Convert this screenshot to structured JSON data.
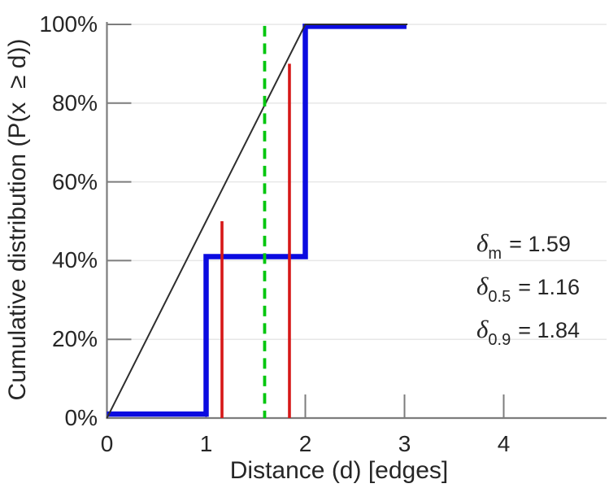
{
  "chart_data": {
    "type": "line",
    "title": "",
    "xlabel": "Distance (d) [edges]",
    "ylabel": "Cumulative distribution (P(x  ≥ d))",
    "xlim": [
      0,
      5.03
    ],
    "ylim": [
      0,
      100
    ],
    "grid": "horizontal-only",
    "legend": "none",
    "xticks": [
      {
        "value": 0,
        "label": "0"
      },
      {
        "value": 1,
        "label": "1"
      },
      {
        "value": 2,
        "label": "2"
      },
      {
        "value": 3,
        "label": "3"
      },
      {
        "value": 4,
        "label": "4"
      }
    ],
    "yticks": [
      {
        "value": 0,
        "label": "0%"
      },
      {
        "value": 20,
        "label": "20%"
      },
      {
        "value": 40,
        "label": "40%"
      },
      {
        "value": 60,
        "label": "60%"
      },
      {
        "value": 80,
        "label": "80%"
      },
      {
        "value": 100,
        "label": "100%"
      }
    ],
    "series": [
      {
        "name": "empirical-cdf-step",
        "color": "#0b0be0",
        "width": 6.5,
        "dash": "",
        "points": [
          [
            0,
            1
          ],
          [
            1,
            1
          ],
          [
            1,
            41
          ],
          [
            2,
            41
          ],
          [
            2,
            99.5
          ],
          [
            3.02,
            99.5
          ]
        ]
      },
      {
        "name": "linear-reference-line",
        "color": "#2e2e2e",
        "width": 2,
        "dash": "",
        "points": [
          [
            0,
            0
          ],
          [
            2,
            100
          ],
          [
            3.03,
            100
          ]
        ]
      }
    ],
    "vertical_markers": [
      {
        "name": "delta-0.5-marker",
        "x": 1.16,
        "y_top": 50,
        "color": "#d61818",
        "width": 3.6,
        "dash": ""
      },
      {
        "name": "delta-0.9-marker",
        "x": 1.84,
        "y_top": 90,
        "color": "#d61818",
        "width": 3.6,
        "dash": ""
      },
      {
        "name": "delta-mean-marker",
        "x": 1.59,
        "y_top": 99.6,
        "color": "#00c60e",
        "width": 3.8,
        "dash": "13 8.5"
      }
    ],
    "annotations": [
      {
        "symbol": "δ",
        "sub": "m",
        "text": "= 1.59"
      },
      {
        "symbol": "δ",
        "sub": "0.5",
        "text": "= 1.16"
      },
      {
        "symbol": "δ",
        "sub": "0.9",
        "text": "= 1.84"
      }
    ],
    "colors": {
      "cdf_line": "#0b0be0",
      "reference_line": "#2e2e2e",
      "quantile_markers": "#d61818",
      "mean_marker": "#00c60e",
      "grid": "#e7e7e7",
      "axis": "#7d7d7d",
      "text": "#262626"
    }
  }
}
